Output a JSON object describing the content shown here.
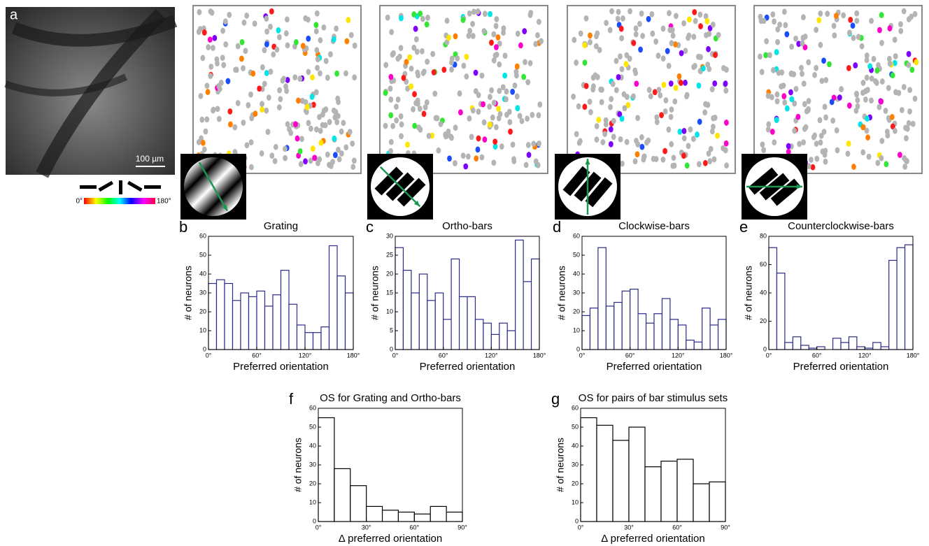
{
  "figure": {
    "panel_a": "a",
    "scale_bar": "100 µm",
    "colorbar_labels": [
      "0°",
      "180°"
    ]
  },
  "chart_data": [
    {
      "type": "histogram",
      "panel": "b",
      "title": "Grating",
      "x_label": "Preferred orientation",
      "y_label": "# of neurons",
      "color": "#2b2b8c",
      "bins": [
        0,
        10,
        20,
        30,
        40,
        50,
        60,
        70,
        80,
        90,
        100,
        110,
        120,
        130,
        140,
        150,
        160,
        170,
        180
      ],
      "values": [
        35,
        37,
        35,
        26,
        30,
        28,
        31,
        23,
        29,
        42,
        24,
        13,
        9,
        9,
        12,
        55,
        39,
        30
      ],
      "xlim": [
        0,
        180
      ],
      "xticks": [
        {
          "value": 0,
          "label": "0°"
        },
        {
          "value": 60,
          "label": "60°"
        },
        {
          "value": 120,
          "label": "120°"
        },
        {
          "value": 180,
          "label": "180°"
        }
      ],
      "ylim": [
        0,
        60
      ],
      "yticks": [
        0,
        10,
        20,
        30,
        40,
        50,
        60
      ]
    },
    {
      "type": "histogram",
      "panel": "c",
      "title": "Ortho-bars",
      "x_label": "Preferred orientation",
      "y_label": "# of neurons",
      "color": "#2b2b8c",
      "bins": [
        0,
        10,
        20,
        30,
        40,
        50,
        60,
        70,
        80,
        90,
        100,
        110,
        120,
        130,
        140,
        150,
        160,
        170,
        180
      ],
      "values": [
        27,
        21,
        15,
        20,
        13,
        15,
        8,
        24,
        14,
        14,
        8,
        7,
        4,
        7,
        5,
        29,
        18,
        24
      ],
      "xlim": [
        0,
        180
      ],
      "xticks": [
        {
          "value": 0,
          "label": "0°"
        },
        {
          "value": 60,
          "label": "60°"
        },
        {
          "value": 120,
          "label": "120°"
        },
        {
          "value": 180,
          "label": "180°"
        }
      ],
      "ylim": [
        0,
        30
      ],
      "yticks": [
        0,
        5,
        10,
        15,
        20,
        25,
        30
      ]
    },
    {
      "type": "histogram",
      "panel": "d",
      "title": "Clockwise-bars",
      "x_label": "Preferred orientation",
      "y_label": "# of neurons",
      "color": "#2b2b8c",
      "bins": [
        0,
        10,
        20,
        30,
        40,
        50,
        60,
        70,
        80,
        90,
        100,
        110,
        120,
        130,
        140,
        150,
        160,
        170,
        180
      ],
      "values": [
        18,
        22,
        54,
        23,
        25,
        31,
        32,
        19,
        14,
        19,
        27,
        16,
        13,
        5,
        4,
        22,
        13,
        16
      ],
      "xlim": [
        0,
        180
      ],
      "xticks": [
        {
          "value": 0,
          "label": "0°"
        },
        {
          "value": 60,
          "label": "60°"
        },
        {
          "value": 120,
          "label": "120°"
        },
        {
          "value": 180,
          "label": "180°"
        }
      ],
      "ylim": [
        0,
        60
      ],
      "yticks": [
        0,
        10,
        20,
        30,
        40,
        50,
        60
      ]
    },
    {
      "type": "histogram",
      "panel": "e",
      "title": "Counterclockwise-bars",
      "x_label": "Preferred orientation",
      "y_label": "# of neurons",
      "color": "#2b2b8c",
      "bins": [
        0,
        10,
        20,
        30,
        40,
        50,
        60,
        70,
        80,
        90,
        100,
        110,
        120,
        130,
        140,
        150,
        160,
        170,
        180
      ],
      "values": [
        72,
        54,
        5,
        9,
        3,
        1,
        2,
        0,
        8,
        5,
        9,
        2,
        1,
        5,
        2,
        63,
        72,
        74
      ],
      "xlim": [
        0,
        180
      ],
      "xticks": [
        {
          "value": 0,
          "label": "0°"
        },
        {
          "value": 60,
          "label": "60°"
        },
        {
          "value": 120,
          "label": "120°"
        },
        {
          "value": 180,
          "label": "180°"
        }
      ],
      "ylim": [
        0,
        80
      ],
      "yticks": [
        0,
        20,
        40,
        60,
        80
      ]
    },
    {
      "type": "histogram",
      "panel": "f",
      "title": "OS for Grating and Ortho-bars",
      "x_label": "Δ preferred orientation",
      "y_label": "# of neurons",
      "color": "#000000",
      "bins": [
        0,
        10,
        20,
        30,
        40,
        50,
        60,
        70,
        80,
        90
      ],
      "values": [
        55,
        28,
        19,
        8,
        6,
        5,
        4,
        8,
        5
      ],
      "xlim": [
        0,
        90
      ],
      "xticks": [
        {
          "value": 0,
          "label": "0°"
        },
        {
          "value": 30,
          "label": "30°"
        },
        {
          "value": 60,
          "label": "60°"
        },
        {
          "value": 90,
          "label": "90°"
        }
      ],
      "ylim": [
        0,
        60
      ],
      "yticks": [
        0,
        10,
        20,
        30,
        40,
        50,
        60
      ]
    },
    {
      "type": "histogram",
      "panel": "g",
      "title": "OS for pairs of bar stimulus sets",
      "x_label": "Δ preferred orientation",
      "y_label": "# of neurons",
      "color": "#000000",
      "bins": [
        0,
        10,
        20,
        30,
        40,
        50,
        60,
        70,
        80,
        90
      ],
      "values": [
        55,
        51,
        43,
        50,
        29,
        32,
        33,
        20,
        21
      ],
      "xlim": [
        0,
        90
      ],
      "xticks": [
        {
          "value": 0,
          "label": "0°"
        },
        {
          "value": 30,
          "label": "30°"
        },
        {
          "value": 60,
          "label": "60°"
        },
        {
          "value": 90,
          "label": "90°"
        }
      ],
      "ylim": [
        0,
        60
      ],
      "yticks": [
        0,
        10,
        20,
        30,
        40,
        50,
        60
      ]
    }
  ]
}
